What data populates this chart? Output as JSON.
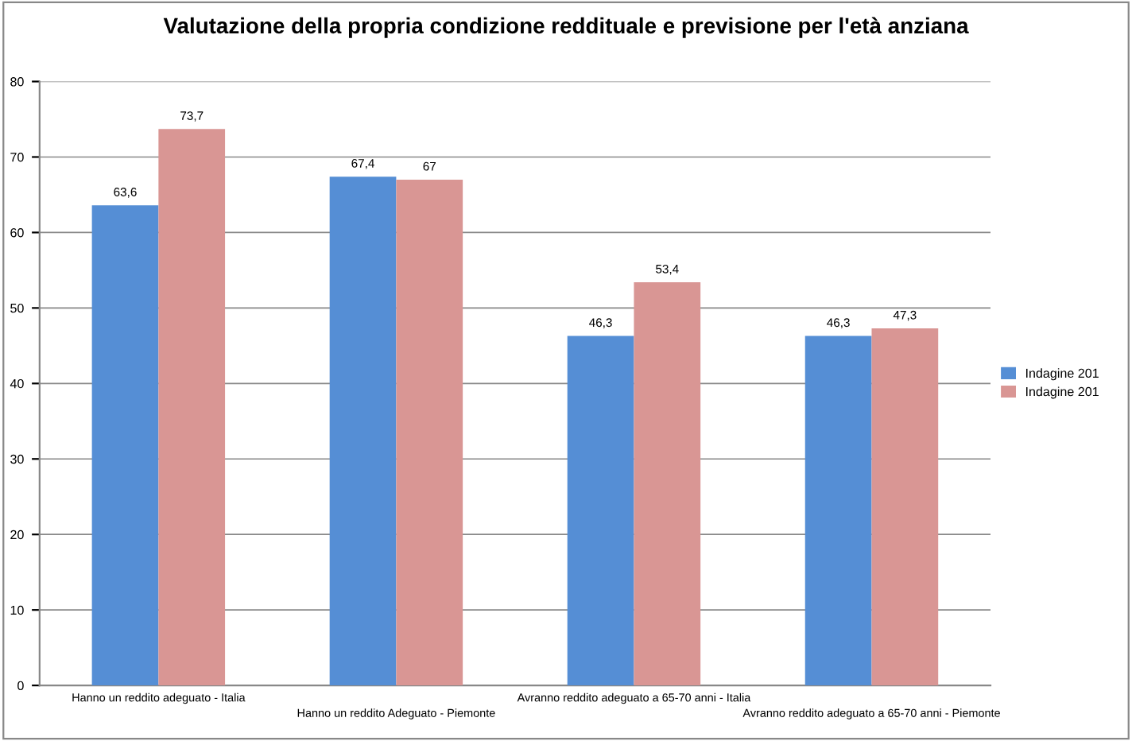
{
  "chart_data": {
    "type": "bar",
    "title": "Valutazione della propria condizione reddituale e previsione per l'età anziana",
    "categories": [
      "Hanno un reddito adeguato - Italia",
      "Hanno un reddito Adeguato - Piemonte",
      "Avranno reddito adeguato a 65-70 anni - Italia",
      "Avranno reddito adeguato a 65-70 anni - Piemonte"
    ],
    "series": [
      {
        "name": "Indagine 201",
        "color": "#558ed5",
        "values": [
          63.6,
          67.4,
          46.3,
          46.3
        ],
        "value_labels": [
          "63,6",
          "67,4",
          "46,3",
          "46,3"
        ]
      },
      {
        "name": "Indagine 201",
        "color": "#d99694",
        "values": [
          73.7,
          67,
          53.4,
          47.3
        ],
        "value_labels": [
          "73,7",
          "67",
          "53,4",
          "47,3"
        ]
      }
    ],
    "ylim": [
      0,
      80
    ],
    "yticks": [
      0,
      10,
      20,
      30,
      40,
      50,
      60,
      70,
      80
    ],
    "grid": "y",
    "legend": "right"
  }
}
